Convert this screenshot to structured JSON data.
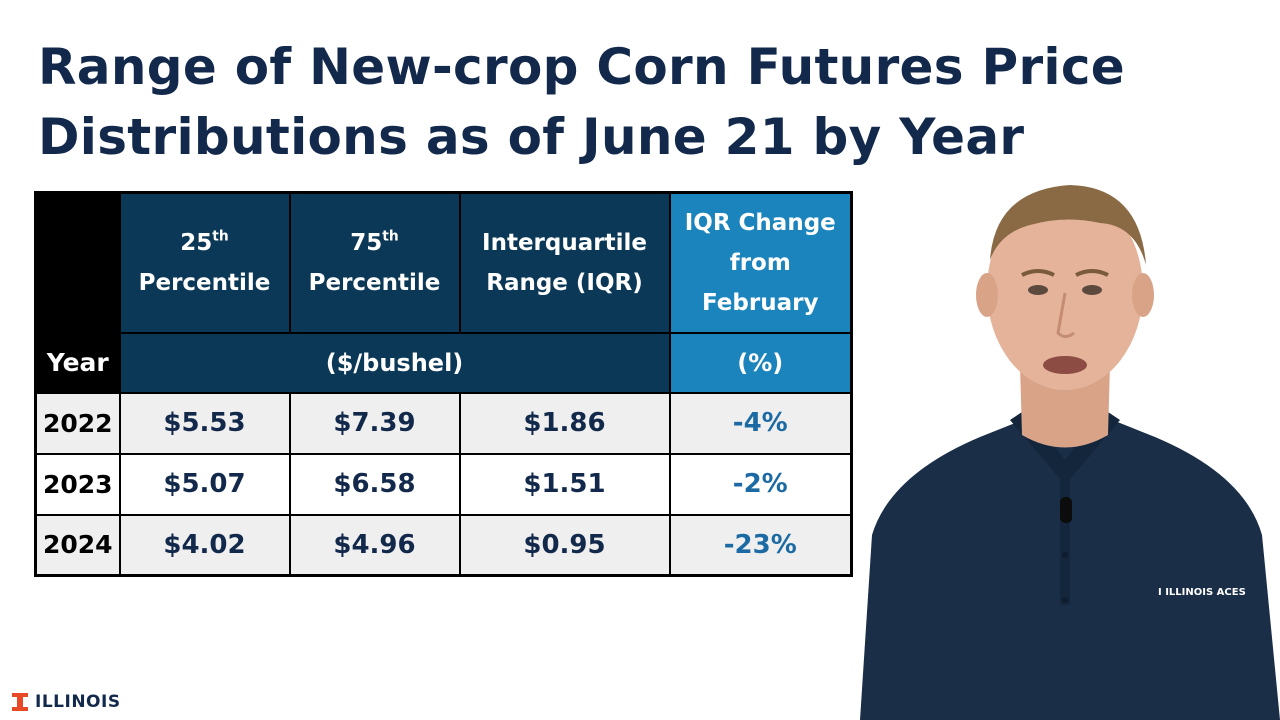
{
  "title": {
    "line1": "Range of New-crop Corn Futures Price",
    "line2": "Distributions as of June 21 by Year"
  },
  "table": {
    "headers": {
      "p25": {
        "main": "25",
        "sup": "th",
        "sub": "Percentile"
      },
      "p75": {
        "main": "75",
        "sup": "th",
        "sub": "Percentile"
      },
      "iqr": {
        "line1": "Interquartile",
        "line2": "Range (IQR)"
      },
      "change": {
        "line1": "IQR Change",
        "line2": "from",
        "line3": "February"
      }
    },
    "year_label": "Year",
    "unit_price": "($/bushel)",
    "unit_pct": "(%)",
    "rows": [
      {
        "year": "2022",
        "p25": "$5.53",
        "p75": "$7.39",
        "iqr": "$1.86",
        "change": "-4%"
      },
      {
        "year": "2023",
        "p25": "$5.07",
        "p75": "$6.58",
        "iqr": "$1.51",
        "change": "-2%"
      },
      {
        "year": "2024",
        "p25": "$4.02",
        "p75": "$4.96",
        "iqr": "$0.95",
        "change": "-23%"
      }
    ]
  },
  "presenter": {
    "shirt_logo": "I ILLINOIS ACES"
  },
  "footer": {
    "logo_text": "ILLINOIS"
  },
  "colors": {
    "navy": "#13294b",
    "header_dark": "#0b3856",
    "header_accent": "#1c84bd",
    "row_shade": "#efefef"
  }
}
